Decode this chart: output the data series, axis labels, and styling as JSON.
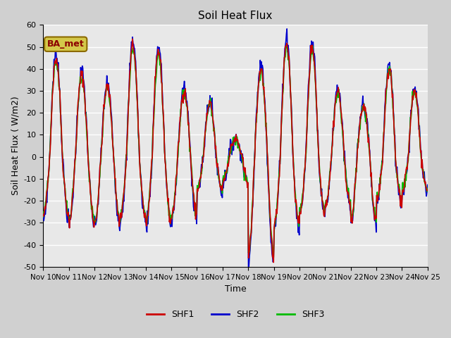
{
  "title": "Soil Heat Flux",
  "ylabel": "Soil Heat Flux ( W/m2)",
  "xlabel": "Time",
  "ylim": [
    -50,
    60
  ],
  "background_color": "#e8e8e8",
  "grid_color": "white",
  "annotation_text": "BA_met",
  "annotation_box_color": "#d4c84a",
  "annotation_text_color": "#8b0000",
  "shf1_color": "#cc0000",
  "shf2_color": "#0000cc",
  "shf3_color": "#00bb00",
  "lw": 1.2,
  "xtick_labels": [
    "Nov 10",
    "Nov 11",
    "Nov 12",
    "Nov 13",
    "Nov 14",
    "Nov 15",
    "Nov 16",
    "Nov 17",
    "Nov 18",
    "Nov 19",
    "Nov 20",
    "Nov 21",
    "Nov 22",
    "Nov 23",
    "Nov 24",
    "Nov 25"
  ],
  "ytick_values": [
    -50,
    -40,
    -30,
    -20,
    -10,
    0,
    10,
    20,
    30,
    40,
    50,
    60
  ],
  "day_amplitudes": [
    45,
    37,
    32,
    51,
    48,
    30,
    24,
    8,
    40,
    52,
    50,
    30,
    23,
    40,
    30
  ],
  "night_troughs": [
    -27,
    -30,
    -30,
    -27,
    -30,
    -27,
    -15,
    -11,
    -45,
    -32,
    -25,
    -22,
    -30,
    -20,
    -15
  ]
}
